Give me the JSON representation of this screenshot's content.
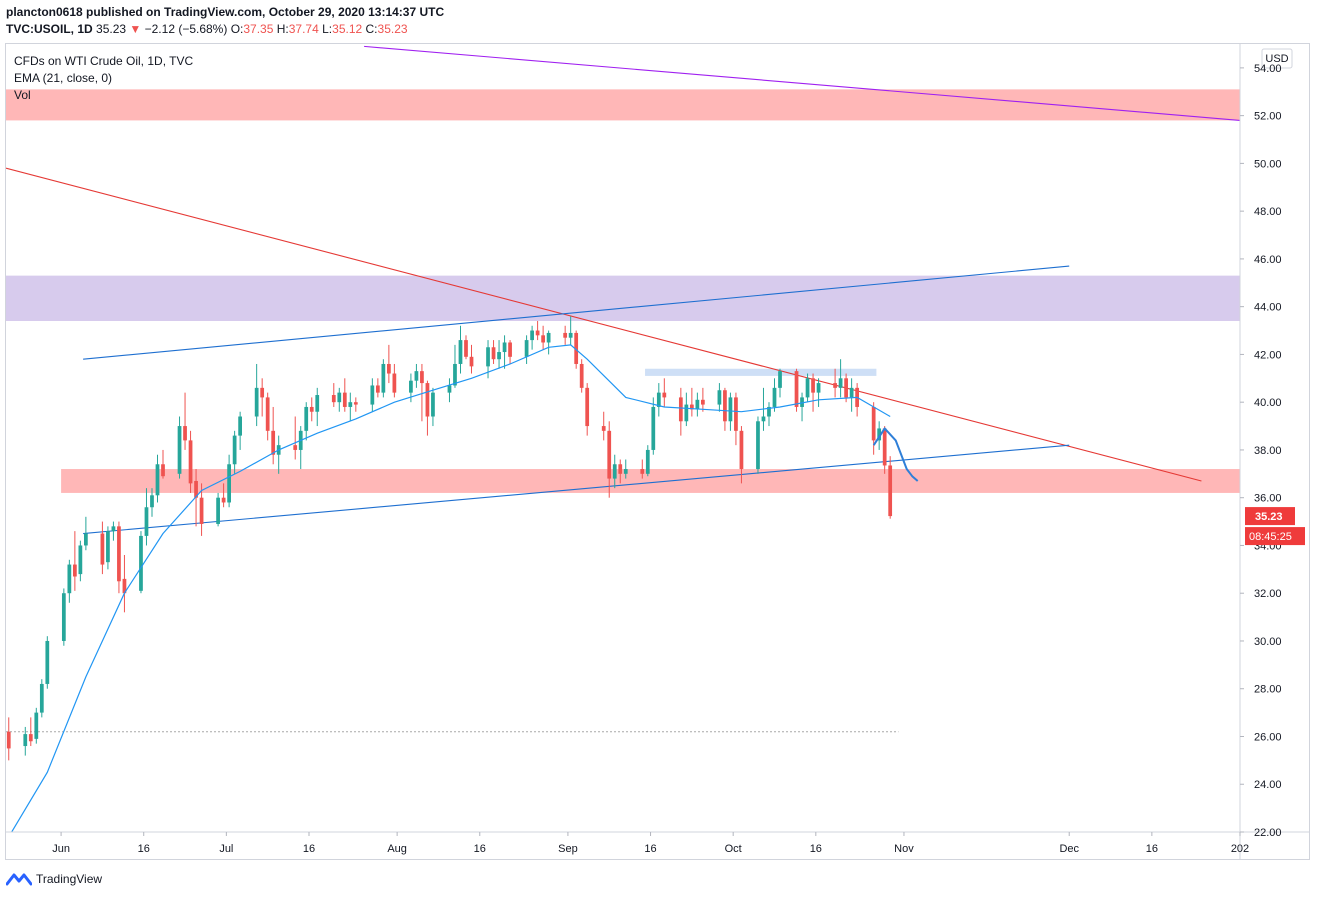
{
  "header": {
    "publisher_line": "plancton0618 published on TradingView.com, October 29, 2020 13:14:37 UTC",
    "symbol": "TVC:USOIL, 1D",
    "last": "35.23",
    "change_arrow": "▼",
    "change": "−2.12 (−5.68%)",
    "o_label": "O:",
    "o_value": "37.35",
    "h_label": "H:",
    "h_value": "37.74",
    "l_label": "L:",
    "l_value": "35.12",
    "c_label": "C:",
    "c_value": "35.23"
  },
  "legend": {
    "title": "CFDs on WTI Crude Oil, 1D, TVC",
    "ema": "EMA (21, close, 0)",
    "vol": "Vol"
  },
  "price_axis": {
    "currency": "USD",
    "ticks": [
      "54.00",
      "52.00",
      "50.00",
      "48.00",
      "46.00",
      "44.00",
      "42.00",
      "40.00",
      "38.00",
      "36.00",
      "34.00",
      "32.00",
      "30.00",
      "28.00",
      "26.00",
      "24.00",
      "22.00"
    ],
    "last_price_label": "35.23",
    "countdown_label": "08:45:25"
  },
  "time_axis": {
    "ticks": [
      "Jun",
      "16",
      "Jul",
      "16",
      "Aug",
      "16",
      "Sep",
      "16",
      "Oct",
      "16",
      "Nov",
      "Dec",
      "16",
      "202"
    ]
  },
  "footer": {
    "brand": "TradingView"
  },
  "colors": {
    "up": "#26a69a",
    "down": "#ef5350",
    "ema": "#2196f3",
    "red_zone": "#ffb3b3",
    "purple_zone": "#d5c8ec",
    "blue_zone": "#c9dbf5",
    "red_trend": "#e53935",
    "blue_trend": "#1e6fd0",
    "purple_trend": "#a020f0",
    "price_label_bg": "#ef3b3b"
  },
  "chart_data": {
    "type": "candlestick",
    "symbol": "TVC:USOIL",
    "interval": "1D",
    "ylim": [
      22,
      55
    ],
    "xlim": [
      "2020-05-22",
      "2021-01-01"
    ],
    "scale": "linear",
    "grid": false,
    "candles": [
      {
        "date": "2020-05-22",
        "o": 26.2,
        "h": 26.8,
        "l": 25.0,
        "c": 25.5
      },
      {
        "date": "2020-05-25",
        "o": 25.6,
        "h": 26.4,
        "l": 25.2,
        "c": 26.1
      },
      {
        "date": "2020-05-26",
        "o": 26.1,
        "h": 26.8,
        "l": 25.6,
        "c": 25.8
      },
      {
        "date": "2020-05-27",
        "o": 25.9,
        "h": 27.2,
        "l": 25.7,
        "c": 27.0
      },
      {
        "date": "2020-05-28",
        "o": 27.0,
        "h": 28.4,
        "l": 26.8,
        "c": 28.2
      },
      {
        "date": "2020-05-29",
        "o": 28.2,
        "h": 30.2,
        "l": 28.0,
        "c": 30.0
      },
      {
        "date": "2020-06-01",
        "o": 30.0,
        "h": 32.2,
        "l": 29.8,
        "c": 32.0
      },
      {
        "date": "2020-06-02",
        "o": 32.0,
        "h": 33.4,
        "l": 31.6,
        "c": 33.2
      },
      {
        "date": "2020-06-03",
        "o": 33.2,
        "h": 34.6,
        "l": 32.1,
        "c": 32.7
      },
      {
        "date": "2020-06-04",
        "o": 32.8,
        "h": 34.2,
        "l": 32.5,
        "c": 34.0
      },
      {
        "date": "2020-06-05",
        "o": 34.0,
        "h": 35.2,
        "l": 33.8,
        "c": 34.5
      },
      {
        "date": "2020-06-08",
        "o": 34.5,
        "h": 35.0,
        "l": 32.8,
        "c": 33.2
      },
      {
        "date": "2020-06-09",
        "o": 33.3,
        "h": 34.8,
        "l": 33.0,
        "c": 34.6
      },
      {
        "date": "2020-06-10",
        "o": 34.6,
        "h": 35.0,
        "l": 34.2,
        "c": 34.8
      },
      {
        "date": "2020-06-11",
        "o": 34.8,
        "h": 35.0,
        "l": 32.0,
        "c": 32.5
      },
      {
        "date": "2020-06-12",
        "o": 32.6,
        "h": 33.6,
        "l": 31.2,
        "c": 32.0
      },
      {
        "date": "2020-06-15",
        "o": 32.1,
        "h": 34.6,
        "l": 32.0,
        "c": 34.4
      },
      {
        "date": "2020-06-16",
        "o": 34.4,
        "h": 36.4,
        "l": 34.0,
        "c": 35.6
      },
      {
        "date": "2020-06-17",
        "o": 35.6,
        "h": 36.4,
        "l": 35.2,
        "c": 36.1
      },
      {
        "date": "2020-06-18",
        "o": 36.1,
        "h": 37.8,
        "l": 35.8,
        "c": 37.4
      },
      {
        "date": "2020-06-19",
        "o": 37.4,
        "h": 38.0,
        "l": 36.8,
        "c": 36.9
      },
      {
        "date": "2020-06-22",
        "o": 37.0,
        "h": 39.4,
        "l": 36.8,
        "c": 39.0
      },
      {
        "date": "2020-06-23",
        "o": 39.0,
        "h": 40.4,
        "l": 38.0,
        "c": 38.4
      },
      {
        "date": "2020-06-24",
        "o": 38.4,
        "h": 38.8,
        "l": 36.2,
        "c": 36.6
      },
      {
        "date": "2020-06-25",
        "o": 36.7,
        "h": 37.2,
        "l": 34.8,
        "c": 36.0
      },
      {
        "date": "2020-06-26",
        "o": 36.0,
        "h": 36.6,
        "l": 34.4,
        "c": 34.9
      },
      {
        "date": "2020-06-29",
        "o": 34.9,
        "h": 36.2,
        "l": 34.8,
        "c": 36.0
      },
      {
        "date": "2020-06-30",
        "o": 36.0,
        "h": 36.6,
        "l": 35.6,
        "c": 35.8
      },
      {
        "date": "2020-07-01",
        "o": 35.8,
        "h": 37.8,
        "l": 35.6,
        "c": 37.4
      },
      {
        "date": "2020-07-02",
        "o": 37.4,
        "h": 38.8,
        "l": 37.0,
        "c": 38.6
      },
      {
        "date": "2020-07-03",
        "o": 38.6,
        "h": 39.6,
        "l": 38.0,
        "c": 39.4
      },
      {
        "date": "2020-07-06",
        "o": 39.4,
        "h": 41.6,
        "l": 39.0,
        "c": 40.6
      },
      {
        "date": "2020-07-07",
        "o": 40.6,
        "h": 41.0,
        "l": 39.4,
        "c": 40.2
      },
      {
        "date": "2020-07-08",
        "o": 40.2,
        "h": 40.4,
        "l": 38.4,
        "c": 38.8
      },
      {
        "date": "2020-07-09",
        "o": 38.8,
        "h": 39.8,
        "l": 37.4,
        "c": 37.8
      },
      {
        "date": "2020-07-10",
        "o": 37.8,
        "h": 38.6,
        "l": 37.0,
        "c": 38.2
      },
      {
        "date": "2020-07-13",
        "o": 38.2,
        "h": 39.4,
        "l": 37.6,
        "c": 38.0
      },
      {
        "date": "2020-07-14",
        "o": 38.0,
        "h": 39.0,
        "l": 37.2,
        "c": 38.8
      },
      {
        "date": "2020-07-15",
        "o": 38.8,
        "h": 40.0,
        "l": 38.4,
        "c": 39.8
      },
      {
        "date": "2020-07-16",
        "o": 39.8,
        "h": 40.2,
        "l": 39.2,
        "c": 39.6
      },
      {
        "date": "2020-07-17",
        "o": 39.6,
        "h": 40.6,
        "l": 39.0,
        "c": 40.3
      },
      {
        "date": "2020-07-20",
        "o": 40.3,
        "h": 40.8,
        "l": 39.8,
        "c": 40.0
      },
      {
        "date": "2020-07-21",
        "o": 40.0,
        "h": 40.6,
        "l": 39.6,
        "c": 40.4
      },
      {
        "date": "2020-07-22",
        "o": 40.4,
        "h": 41.0,
        "l": 39.6,
        "c": 39.8
      },
      {
        "date": "2020-07-23",
        "o": 39.8,
        "h": 40.4,
        "l": 39.2,
        "c": 40.0
      },
      {
        "date": "2020-07-24",
        "o": 40.0,
        "h": 40.2,
        "l": 39.6,
        "c": 39.9
      },
      {
        "date": "2020-07-27",
        "o": 39.9,
        "h": 41.0,
        "l": 39.6,
        "c": 40.7
      },
      {
        "date": "2020-07-28",
        "o": 40.7,
        "h": 41.0,
        "l": 40.2,
        "c": 40.4
      },
      {
        "date": "2020-07-29",
        "o": 40.4,
        "h": 41.8,
        "l": 40.2,
        "c": 41.6
      },
      {
        "date": "2020-07-30",
        "o": 41.6,
        "h": 42.4,
        "l": 40.8,
        "c": 41.2
      },
      {
        "date": "2020-07-31",
        "o": 41.2,
        "h": 41.6,
        "l": 40.2,
        "c": 40.4
      },
      {
        "date": "2020-08-03",
        "o": 40.4,
        "h": 41.2,
        "l": 40.0,
        "c": 40.9
      },
      {
        "date": "2020-08-04",
        "o": 40.9,
        "h": 41.6,
        "l": 40.6,
        "c": 41.3
      },
      {
        "date": "2020-08-05",
        "o": 41.3,
        "h": 41.6,
        "l": 39.2,
        "c": 40.8
      },
      {
        "date": "2020-08-06",
        "o": 40.8,
        "h": 40.9,
        "l": 38.6,
        "c": 39.4
      },
      {
        "date": "2020-08-07",
        "o": 39.4,
        "h": 40.6,
        "l": 39.0,
        "c": 40.4
      },
      {
        "date": "2020-08-10",
        "o": 40.4,
        "h": 41.0,
        "l": 40.0,
        "c": 40.7
      },
      {
        "date": "2020-08-11",
        "o": 40.7,
        "h": 42.4,
        "l": 40.6,
        "c": 41.6
      },
      {
        "date": "2020-08-12",
        "o": 41.6,
        "h": 43.2,
        "l": 41.2,
        "c": 42.6
      },
      {
        "date": "2020-08-13",
        "o": 42.6,
        "h": 42.8,
        "l": 41.8,
        "c": 41.9
      },
      {
        "date": "2020-08-14",
        "o": 41.9,
        "h": 42.4,
        "l": 41.2,
        "c": 41.5
      },
      {
        "date": "2020-08-17",
        "o": 41.5,
        "h": 42.6,
        "l": 41.0,
        "c": 42.3
      },
      {
        "date": "2020-08-18",
        "o": 42.3,
        "h": 42.6,
        "l": 41.6,
        "c": 41.8
      },
      {
        "date": "2020-08-19",
        "o": 41.8,
        "h": 42.6,
        "l": 41.4,
        "c": 42.1
      },
      {
        "date": "2020-08-20",
        "o": 42.1,
        "h": 42.8,
        "l": 41.4,
        "c": 42.5
      },
      {
        "date": "2020-08-21",
        "o": 42.5,
        "h": 42.6,
        "l": 41.6,
        "c": 41.9
      },
      {
        "date": "2020-08-24",
        "o": 41.9,
        "h": 42.8,
        "l": 41.6,
        "c": 42.6
      },
      {
        "date": "2020-08-25",
        "o": 42.6,
        "h": 43.2,
        "l": 42.2,
        "c": 43.0
      },
      {
        "date": "2020-08-26",
        "o": 43.0,
        "h": 43.4,
        "l": 42.6,
        "c": 42.8
      },
      {
        "date": "2020-08-27",
        "o": 42.8,
        "h": 43.2,
        "l": 42.2,
        "c": 42.5
      },
      {
        "date": "2020-08-28",
        "o": 42.5,
        "h": 43.0,
        "l": 42.0,
        "c": 42.9
      },
      {
        "date": "2020-08-31",
        "o": 42.9,
        "h": 43.2,
        "l": 42.4,
        "c": 42.7
      },
      {
        "date": "2020-09-01",
        "o": 42.7,
        "h": 43.6,
        "l": 42.4,
        "c": 42.9
      },
      {
        "date": "2020-09-02",
        "o": 42.9,
        "h": 43.0,
        "l": 41.4,
        "c": 41.6
      },
      {
        "date": "2020-09-03",
        "o": 41.6,
        "h": 41.8,
        "l": 40.4,
        "c": 40.6
      },
      {
        "date": "2020-09-04",
        "o": 40.6,
        "h": 40.8,
        "l": 38.6,
        "c": 39.0
      },
      {
        "date": "2020-09-07",
        "o": 39.0,
        "h": 39.6,
        "l": 38.4,
        "c": 38.8
      },
      {
        "date": "2020-09-08",
        "o": 38.8,
        "h": 39.2,
        "l": 36.0,
        "c": 36.8
      },
      {
        "date": "2020-09-09",
        "o": 36.8,
        "h": 37.8,
        "l": 36.4,
        "c": 37.4
      },
      {
        "date": "2020-09-10",
        "o": 37.4,
        "h": 37.6,
        "l": 36.6,
        "c": 37.0
      },
      {
        "date": "2020-09-11",
        "o": 37.0,
        "h": 37.6,
        "l": 36.8,
        "c": 37.2
      },
      {
        "date": "2020-09-14",
        "o": 37.2,
        "h": 37.6,
        "l": 36.8,
        "c": 37.0
      },
      {
        "date": "2020-09-15",
        "o": 37.0,
        "h": 38.2,
        "l": 36.9,
        "c": 38.0
      },
      {
        "date": "2020-09-16",
        "o": 38.0,
        "h": 40.2,
        "l": 37.8,
        "c": 39.8
      },
      {
        "date": "2020-09-17",
        "o": 39.8,
        "h": 40.8,
        "l": 39.4,
        "c": 40.4
      },
      {
        "date": "2020-09-18",
        "o": 40.4,
        "h": 41.0,
        "l": 39.8,
        "c": 40.2
      },
      {
        "date": "2020-09-21",
        "o": 40.2,
        "h": 40.6,
        "l": 38.6,
        "c": 39.2
      },
      {
        "date": "2020-09-22",
        "o": 39.2,
        "h": 40.4,
        "l": 39.0,
        "c": 39.9
      },
      {
        "date": "2020-09-23",
        "o": 39.9,
        "h": 40.6,
        "l": 39.4,
        "c": 39.7
      },
      {
        "date": "2020-09-24",
        "o": 39.7,
        "h": 40.4,
        "l": 39.4,
        "c": 40.1
      },
      {
        "date": "2020-09-25",
        "o": 40.1,
        "h": 40.6,
        "l": 39.6,
        "c": 39.9
      },
      {
        "date": "2020-09-28",
        "o": 39.9,
        "h": 40.8,
        "l": 39.6,
        "c": 40.5
      },
      {
        "date": "2020-09-29",
        "o": 40.5,
        "h": 40.6,
        "l": 38.8,
        "c": 39.2
      },
      {
        "date": "2020-09-30",
        "o": 39.2,
        "h": 40.4,
        "l": 38.8,
        "c": 40.2
      },
      {
        "date": "2020-10-01",
        "o": 40.2,
        "h": 40.4,
        "l": 38.2,
        "c": 38.8
      },
      {
        "date": "2020-10-02",
        "o": 38.8,
        "h": 39.0,
        "l": 36.6,
        "c": 37.2
      },
      {
        "date": "2020-10-05",
        "o": 37.2,
        "h": 39.4,
        "l": 37.0,
        "c": 39.2
      },
      {
        "date": "2020-10-06",
        "o": 39.2,
        "h": 40.6,
        "l": 38.8,
        "c": 39.4
      },
      {
        "date": "2020-10-07",
        "o": 39.4,
        "h": 40.0,
        "l": 39.0,
        "c": 39.8
      },
      {
        "date": "2020-10-08",
        "o": 39.8,
        "h": 41.0,
        "l": 39.6,
        "c": 40.6
      },
      {
        "date": "2020-10-09",
        "o": 40.6,
        "h": 41.4,
        "l": 40.2,
        "c": 41.3
      },
      {
        "date": "2020-10-12",
        "o": 41.3,
        "h": 41.4,
        "l": 39.6,
        "c": 39.8
      },
      {
        "date": "2020-10-13",
        "o": 39.8,
        "h": 40.4,
        "l": 39.2,
        "c": 40.2
      },
      {
        "date": "2020-10-14",
        "o": 40.2,
        "h": 41.2,
        "l": 40.0,
        "c": 41.0
      },
      {
        "date": "2020-10-15",
        "o": 41.0,
        "h": 41.2,
        "l": 39.6,
        "c": 40.4
      },
      {
        "date": "2020-10-16",
        "o": 40.4,
        "h": 41.0,
        "l": 39.8,
        "c": 40.8
      },
      {
        "date": "2020-10-19",
        "o": 40.8,
        "h": 41.4,
        "l": 40.2,
        "c": 40.6
      },
      {
        "date": "2020-10-20",
        "o": 40.6,
        "h": 41.8,
        "l": 40.2,
        "c": 41.0
      },
      {
        "date": "2020-10-21",
        "o": 41.0,
        "h": 41.2,
        "l": 40.0,
        "c": 40.2
      },
      {
        "date": "2020-10-22",
        "o": 40.2,
        "h": 41.0,
        "l": 39.6,
        "c": 40.6
      },
      {
        "date": "2020-10-23",
        "o": 40.6,
        "h": 40.8,
        "l": 39.4,
        "c": 39.8
      },
      {
        "date": "2020-10-26",
        "o": 39.8,
        "h": 40.0,
        "l": 37.8,
        "c": 38.4
      },
      {
        "date": "2020-10-27",
        "o": 38.4,
        "h": 39.2,
        "l": 38.0,
        "c": 38.9
      },
      {
        "date": "2020-10-28",
        "o": 38.9,
        "h": 39.0,
        "l": 37.0,
        "c": 37.35
      },
      {
        "date": "2020-10-29",
        "o": 37.35,
        "h": 37.74,
        "l": 35.12,
        "c": 35.23
      }
    ],
    "ema": {
      "name": "EMA (21, close, 0)",
      "points": [
        {
          "date": "2020-05-22",
          "v": 21.8
        },
        {
          "date": "2020-05-29",
          "v": 24.5
        },
        {
          "date": "2020-06-05",
          "v": 28.5
        },
        {
          "date": "2020-06-12",
          "v": 32.0
        },
        {
          "date": "2020-06-19",
          "v": 34.5
        },
        {
          "date": "2020-06-26",
          "v": 36.3
        },
        {
          "date": "2020-07-03",
          "v": 37.1
        },
        {
          "date": "2020-07-10",
          "v": 38.0
        },
        {
          "date": "2020-07-17",
          "v": 38.7
        },
        {
          "date": "2020-07-24",
          "v": 39.3
        },
        {
          "date": "2020-07-31",
          "v": 40.0
        },
        {
          "date": "2020-08-07",
          "v": 40.5
        },
        {
          "date": "2020-08-14",
          "v": 41.0
        },
        {
          "date": "2020-08-21",
          "v": 41.6
        },
        {
          "date": "2020-08-28",
          "v": 42.3
        },
        {
          "date": "2020-09-01",
          "v": 42.4
        },
        {
          "date": "2020-09-04",
          "v": 41.8
        },
        {
          "date": "2020-09-11",
          "v": 40.2
        },
        {
          "date": "2020-09-18",
          "v": 39.8
        },
        {
          "date": "2020-09-25",
          "v": 39.7
        },
        {
          "date": "2020-10-02",
          "v": 39.6
        },
        {
          "date": "2020-10-09",
          "v": 39.8
        },
        {
          "date": "2020-10-16",
          "v": 40.1
        },
        {
          "date": "2020-10-23",
          "v": 40.2
        },
        {
          "date": "2020-10-29",
          "v": 39.4
        }
      ]
    },
    "zones": [
      {
        "color": "red_zone",
        "from": "2020-05-22",
        "to": "2021-01-01",
        "y_low": 51.8,
        "y_high": 53.1
      },
      {
        "color": "purple_zone",
        "from": "2020-05-22",
        "to": "2021-01-01",
        "y_low": 43.4,
        "y_high": 45.3
      },
      {
        "color": "red_zone",
        "from": "2020-06-01",
        "to": "2021-01-01",
        "y_low": 36.2,
        "y_high": 37.2
      },
      {
        "color": "blue_zone",
        "from": "2020-09-15",
        "to": "2020-10-27",
        "y_low": 41.1,
        "y_high": 41.4
      }
    ],
    "trend_lines": [
      {
        "color": "purple_trend",
        "from": {
          "date": "2020-07-26",
          "v": 54.9
        },
        "to": {
          "date": "2021-01-01",
          "v": 51.8
        }
      },
      {
        "color": "red_trend",
        "from": {
          "date": "2020-05-22",
          "v": 49.8
        },
        "to": {
          "date": "2020-12-25",
          "v": 36.7
        }
      },
      {
        "color": "blue_trend",
        "from": {
          "date": "2020-06-05",
          "v": 41.8
        },
        "to": {
          "date": "2020-12-01",
          "v": 45.7
        }
      },
      {
        "color": "blue_trend",
        "from": {
          "date": "2020-06-05",
          "v": 34.5
        },
        "to": {
          "date": "2020-12-01",
          "v": 38.2
        }
      }
    ],
    "projection": {
      "color": "ema",
      "points": [
        {
          "date": "2020-10-26",
          "v": 38.2
        },
        {
          "date": "2020-10-28",
          "v": 38.9
        },
        {
          "date": "2020-10-30",
          "v": 38.4
        },
        {
          "date": "2020-11-01",
          "v": 37.2
        },
        {
          "date": "2020-11-02",
          "v": 36.9
        },
        {
          "date": "2020-11-03",
          "v": 36.7
        }
      ]
    },
    "dashed_level": {
      "v": 26.2,
      "from": "2020-05-22",
      "to": "2020-10-31"
    }
  }
}
